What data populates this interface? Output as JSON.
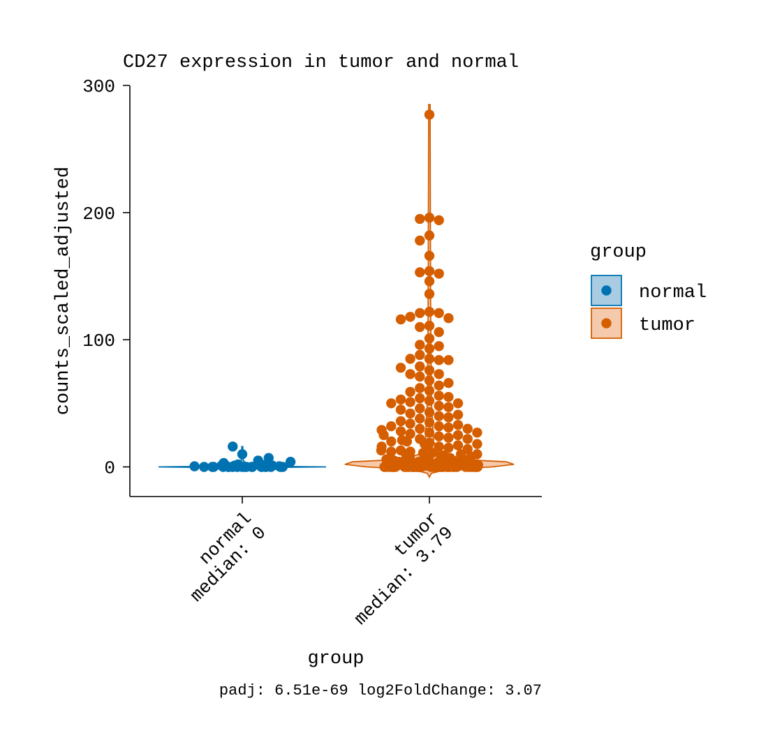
{
  "chart_data": {
    "type": "violin",
    "title": "CD27 expression in tumor and normal",
    "xlabel": "group",
    "ylabel": "counts_scaled_adjusted",
    "ylim": [
      -22,
      300
    ],
    "yticks": [
      0,
      100,
      200,
      300
    ],
    "grid": false,
    "caption": "padj:  6.51e-69 log2FoldChange:  3.07",
    "legend": {
      "title": "group",
      "placement": "right",
      "entries": [
        {
          "label": "normal",
          "color": "#0072B2",
          "fill": "#A9CCE3"
        },
        {
          "label": "tumor",
          "color": "#D55E00",
          "fill": "#F5C9AB"
        }
      ]
    },
    "categories": [
      {
        "name": "normal",
        "tick_line1": "normal",
        "tick_line2": "median: 0",
        "median": 0,
        "max": 16
      },
      {
        "name": "tumor",
        "tick_line1": "tumor",
        "tick_line2": "median: 3.79",
        "median": 3.79,
        "max": 285
      }
    ],
    "series": [
      {
        "name": "normal",
        "values": [
          0,
          0,
          0,
          0,
          0,
          0,
          0,
          0,
          0,
          0,
          0,
          0,
          0,
          0,
          0,
          0,
          0,
          0,
          0,
          0,
          0.5,
          0.5,
          1,
          1,
          1,
          1.5,
          2,
          2,
          3,
          4,
          5,
          7,
          10,
          16
        ]
      },
      {
        "name": "tumor",
        "values": [
          277,
          196,
          195,
          194,
          182,
          178,
          166,
          154,
          153,
          152,
          146,
          136,
          122,
          121,
          121,
          118,
          117,
          116,
          111,
          110,
          106,
          101,
          96,
          95,
          93,
          88,
          85,
          85,
          84,
          84,
          79,
          78,
          76,
          73,
          73,
          71,
          68,
          66,
          64,
          62,
          60,
          59,
          56,
          55,
          54,
          53,
          52,
          51,
          50,
          50,
          48,
          47,
          46,
          45,
          43,
          42,
          41,
          40,
          39,
          38,
          36,
          35,
          34,
          33,
          32,
          32,
          31,
          30,
          30,
          29,
          28,
          27,
          27,
          26,
          25,
          25,
          24,
          23,
          22,
          22,
          21,
          20,
          20,
          19,
          18,
          18,
          17,
          16,
          16,
          15,
          14,
          14,
          13,
          13,
          12,
          12,
          11,
          11,
          10,
          10,
          10,
          9,
          9,
          9,
          8,
          8,
          8,
          7,
          7,
          7,
          7,
          6,
          6,
          6,
          6,
          5,
          5,
          5,
          5,
          5,
          4,
          4,
          4,
          4,
          4,
          4,
          3.79,
          3.5,
          3.5,
          3,
          3,
          3,
          3,
          3,
          3,
          2.5,
          2.5,
          2,
          2,
          2,
          2,
          2,
          2,
          2,
          1.5,
          1.5,
          1.5,
          1,
          1,
          1,
          1,
          1,
          1,
          1,
          1,
          0.5,
          0.5,
          0.5,
          0.5,
          0.5,
          0.5,
          0.5,
          0,
          0,
          0,
          0,
          0,
          0,
          0,
          0,
          0,
          0,
          0,
          0,
          0,
          0,
          0,
          0,
          0,
          0,
          0,
          0,
          0,
          0,
          0,
          0,
          0,
          0,
          0,
          0,
          0,
          0,
          0,
          0,
          0,
          0,
          0,
          0,
          0,
          0,
          0,
          0,
          0,
          0,
          0,
          0,
          0
        ]
      }
    ]
  }
}
